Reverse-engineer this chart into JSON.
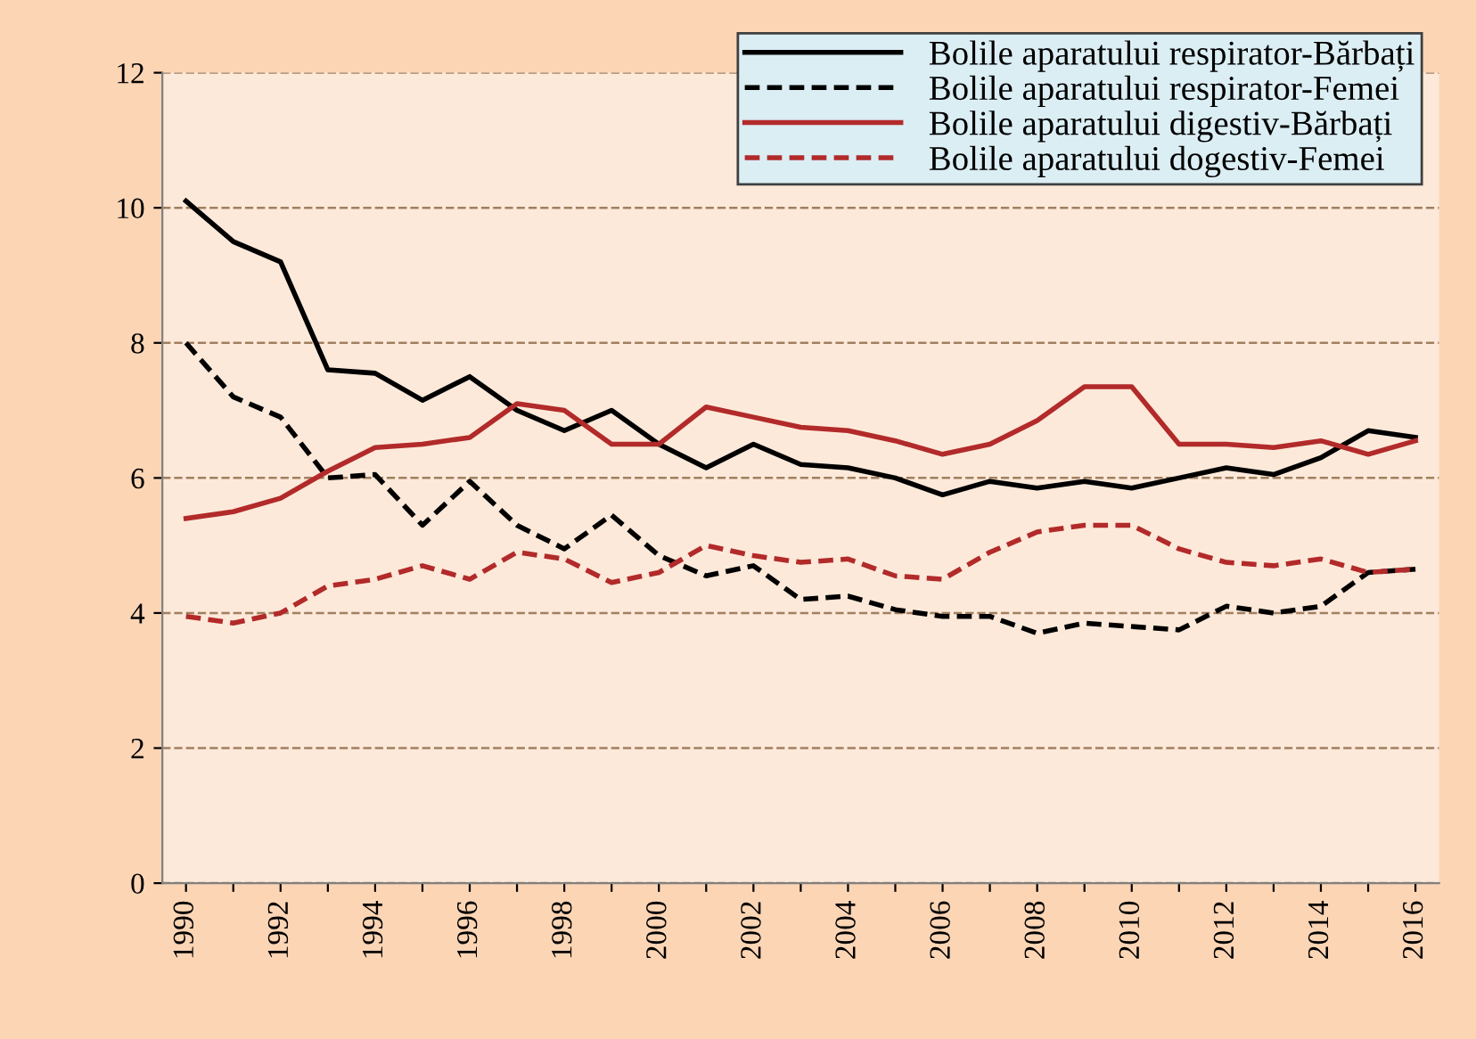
{
  "chart_data": {
    "type": "line",
    "categories": [
      "1990",
      null,
      "1992",
      null,
      "1994",
      null,
      "1996",
      null,
      "1998",
      null,
      "2000",
      null,
      "2002",
      null,
      "2004",
      null,
      "2006",
      null,
      "2008",
      null,
      "2010",
      null,
      "2012",
      null,
      "2014",
      null,
      "2016"
    ],
    "series": [
      {
        "name": "Bolile aparatului respirator-Bărbați",
        "color": "#000000",
        "line_style": "solid",
        "values": [
          10.1,
          9.5,
          9.2,
          7.6,
          7.55,
          7.15,
          7.5,
          7.0,
          6.7,
          7.0,
          6.5,
          6.15,
          6.5,
          6.2,
          6.15,
          6.0,
          5.75,
          5.95,
          5.85,
          5.95,
          5.85,
          6.0,
          6.15,
          6.05,
          6.3,
          6.7,
          6.6
        ]
      },
      {
        "name": "Bolile aparatului respirator-Femei",
        "color": "#000000",
        "line_style": "dashed",
        "values": [
          8.0,
          7.2,
          6.9,
          6.0,
          6.05,
          5.3,
          5.95,
          5.3,
          4.95,
          5.45,
          4.85,
          4.55,
          4.7,
          4.2,
          4.25,
          4.05,
          3.95,
          3.95,
          3.7,
          3.85,
          3.8,
          3.75,
          4.1,
          4.0,
          4.1,
          4.6,
          4.65
        ]
      },
      {
        "name": "Bolile aparatului digestiv-Bărbați",
        "color": "#b22a2a",
        "line_style": "solid",
        "values": [
          5.4,
          5.5,
          5.7,
          6.1,
          6.45,
          6.5,
          6.6,
          7.1,
          7.0,
          6.5,
          6.5,
          7.05,
          6.9,
          6.75,
          6.7,
          6.55,
          6.35,
          6.5,
          6.85,
          7.35,
          7.35,
          6.5,
          6.5,
          6.45,
          6.55,
          6.35,
          6.55
        ]
      },
      {
        "name": "Bolile aparatului dogestiv-Femei",
        "color": "#b22a2a",
        "line_style": "dashed",
        "values": [
          3.95,
          3.85,
          4.0,
          4.4,
          4.5,
          4.7,
          4.5,
          4.9,
          4.8,
          4.45,
          4.6,
          5.0,
          4.85,
          4.75,
          4.8,
          4.55,
          4.5,
          4.9,
          5.2,
          5.3,
          5.3,
          4.95,
          4.75,
          4.7,
          4.8,
          4.6,
          4.65
        ]
      }
    ],
    "ylim": [
      0,
      12
    ],
    "yticks": [
      0,
      2,
      4,
      6,
      8,
      10,
      12
    ],
    "grid": "y",
    "legend": "top right",
    "marker": "none"
  }
}
